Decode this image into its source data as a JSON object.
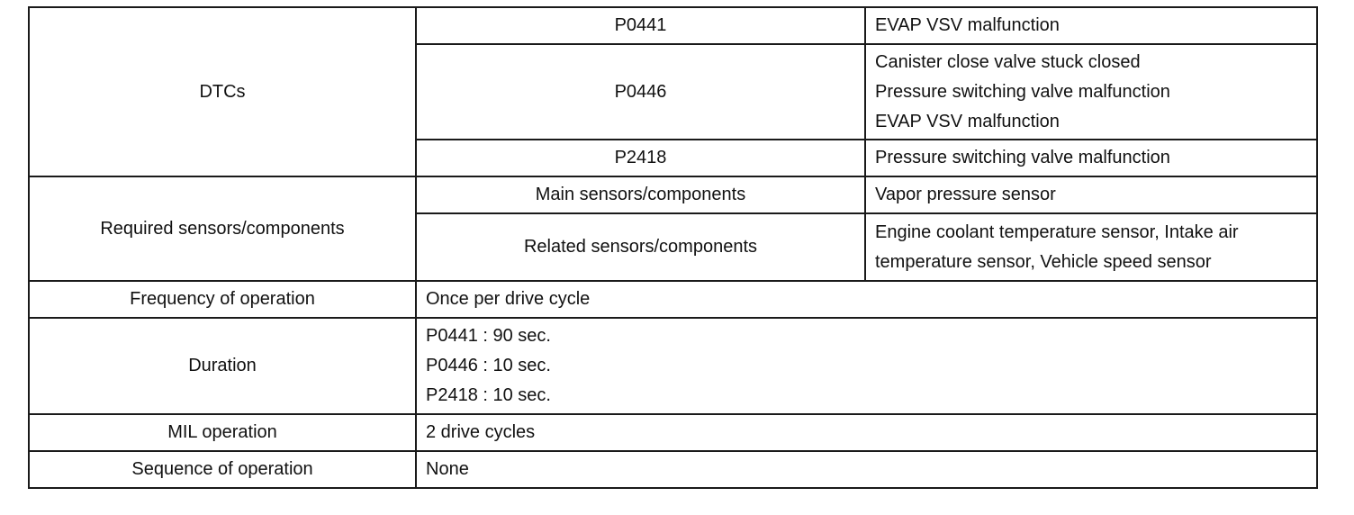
{
  "dtcs": {
    "label": "DTCs",
    "rows": [
      {
        "code": "P0441",
        "lines": [
          "EVAP VSV malfunction"
        ]
      },
      {
        "code": "P0446",
        "lines": [
          "Canister close valve stuck closed",
          "Pressure switching valve malfunction",
          "EVAP VSV malfunction"
        ]
      },
      {
        "code": "P2418",
        "lines": [
          "Pressure switching valve malfunction"
        ]
      }
    ]
  },
  "required": {
    "label": "Required sensors/components",
    "main_label": "Main sensors/components",
    "main_value": "Vapor pressure sensor",
    "related_label": "Related sensors/components",
    "related_lines": [
      "Engine coolant temperature sensor, Intake air",
      "temperature sensor, Vehicle speed sensor"
    ]
  },
  "frequency": {
    "label": "Frequency of operation",
    "value": "Once per drive cycle"
  },
  "duration": {
    "label": "Duration",
    "lines": [
      "P0441 : 90 sec.",
      "P0446 : 10 sec.",
      "P2418 : 10 sec."
    ]
  },
  "mil": {
    "label": "MIL operation",
    "value": "2 drive cycles"
  },
  "sequence": {
    "label": "Sequence of operation",
    "value": "None"
  }
}
